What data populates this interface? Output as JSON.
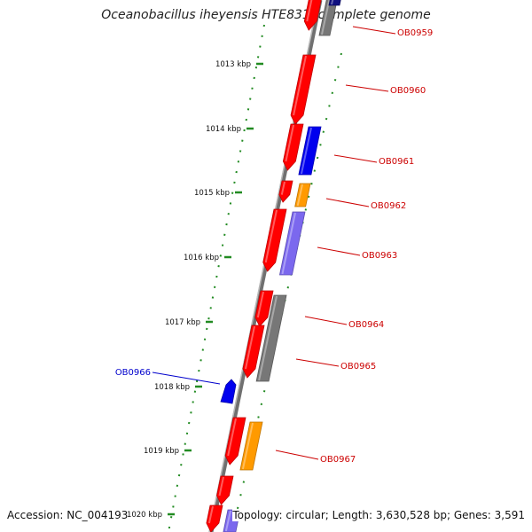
{
  "title": "Oceanobacillus iheyensis HTE831, complete genome",
  "accession": "Accession: NC_004193",
  "summary": "Topology: circular; Length: 3,630,528 bp; Genes: 3,591",
  "colors": {
    "backbone": "#8a8a8a",
    "ruler": "#228b22",
    "red": "#ff0000",
    "blue": "#0000ee",
    "orange": "#ff9a00",
    "purple": "#7b68ee",
    "gray": "#777777",
    "navy": "#101080",
    "label_red": "#cc0000",
    "label_blue": "#0000cc"
  },
  "ruler_ticks": [
    {
      "label": "1013 kbp",
      "kbp": 1013
    },
    {
      "label": "1014 kbp",
      "kbp": 1014
    },
    {
      "label": "1015 kbp",
      "kbp": 1015
    },
    {
      "label": "1016 kbp",
      "kbp": 1016
    },
    {
      "label": "1017 kbp",
      "kbp": 1017
    },
    {
      "label": "1018 kbp",
      "kbp": 1018
    },
    {
      "label": "1019 kbp",
      "kbp": 1019
    },
    {
      "label": "1020 kbp",
      "kbp": 1020
    }
  ],
  "gene_labels": [
    {
      "text": "OB0959",
      "color": "label_red"
    },
    {
      "text": "OB0960",
      "color": "label_red"
    },
    {
      "text": "OB0961",
      "color": "label_red"
    },
    {
      "text": "OB0962",
      "color": "label_red"
    },
    {
      "text": "OB0963",
      "color": "label_red"
    },
    {
      "text": "OB0964",
      "color": "label_red"
    },
    {
      "text": "OB0965",
      "color": "label_red"
    },
    {
      "text": "OB0966",
      "color": "label_blue"
    },
    {
      "text": "OB0967",
      "color": "label_red"
    }
  ]
}
